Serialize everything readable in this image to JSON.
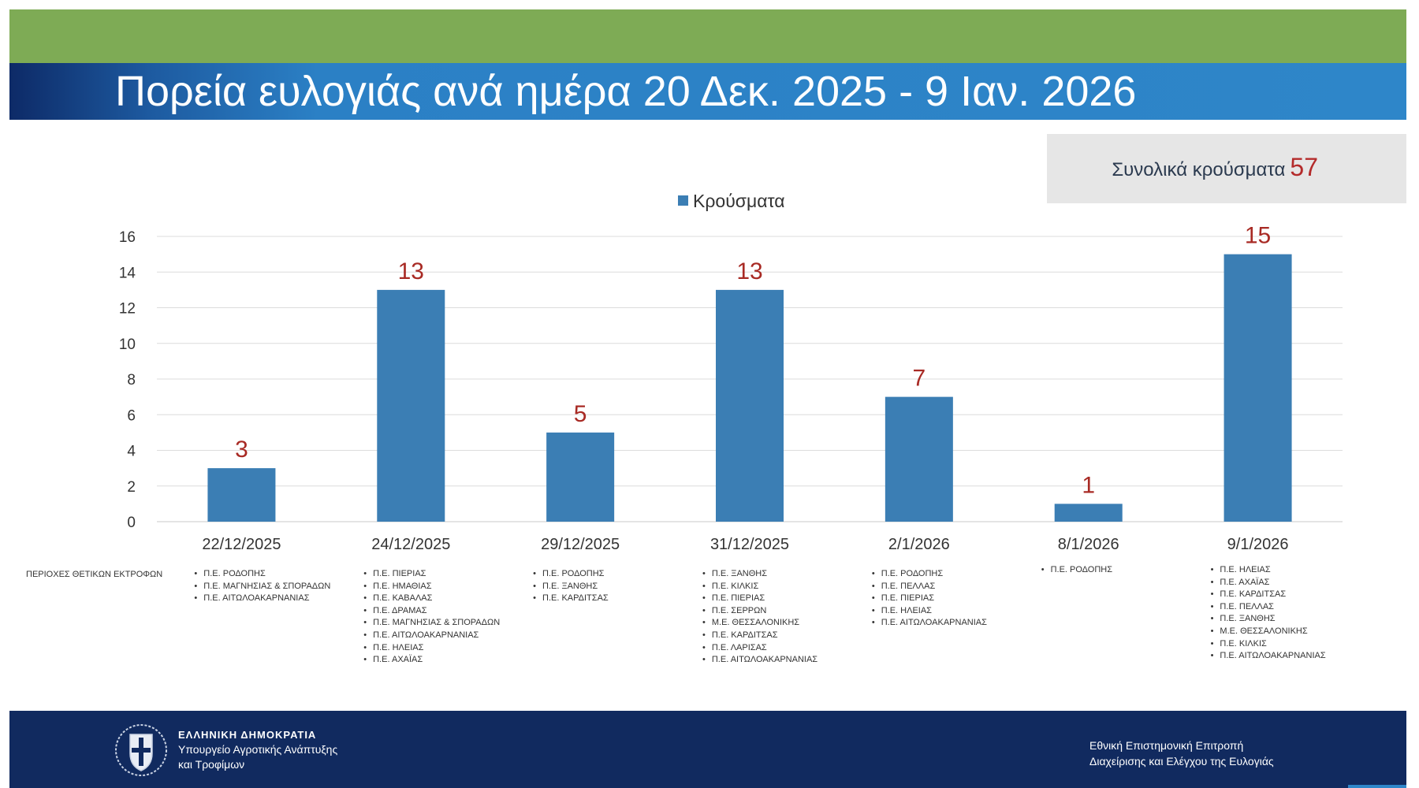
{
  "header": {
    "title": "Πορεία ευλογιάς ανά ημέρα 20 Δεκ. 2025 - 9 Ιαν. 2026"
  },
  "total": {
    "label": "Συνολικά κρούσματα",
    "value": "57"
  },
  "colors": {
    "bar": "#3b7eb4",
    "data_label": "#a82a24",
    "green_band": "#7eab55",
    "title_band": "#2e86c9",
    "footer": "#112a5f"
  },
  "chart_data": {
    "type": "bar",
    "categories": [
      "22/12/2025",
      "24/12/2025",
      "29/12/2025",
      "31/12/2025",
      "2/1/2026",
      "8/1/2026",
      "9/1/2026"
    ],
    "series": [
      {
        "name": "Κρούσματα",
        "values": [
          3,
          13,
          5,
          13,
          7,
          1,
          15
        ]
      }
    ],
    "ylim": [
      0,
      16
    ],
    "yticks": [
      0,
      2,
      4,
      6,
      8,
      10,
      12,
      14,
      16
    ],
    "grid": true,
    "legend_position": "top-center",
    "data_labels": true
  },
  "regions": {
    "caption": "ΠΕΡΙΟΧΕΣ ΘΕΤΙΚΩΝ ΕΚΤΡΟΦΩΝ",
    "lists": [
      [
        "Π.Ε. ΡΟΔΟΠΗΣ",
        "Π.Ε. ΜΑΓΝΗΣΙΑΣ & ΣΠΟΡΑΔΩΝ",
        "Π.Ε. ΑΙΤΩΛΟΑΚΑΡΝΑΝΙΑΣ"
      ],
      [
        "Π.Ε. ΠΙΕΡΙΑΣ",
        "Π.Ε. ΗΜΑΘΙΑΣ",
        "Π.Ε. ΚΑΒΑΛΑΣ",
        "Π.Ε. ΔΡΑΜΑΣ",
        "Π.Ε. ΜΑΓΝΗΣΙΑΣ & ΣΠΟΡΑΔΩΝ",
        "Π.Ε. ΑΙΤΩΛΟΑΚΑΡΝΑΝΙΑΣ",
        "Π.Ε. ΗΛΕΙΑΣ",
        "Π.Ε. ΑΧΑΪΑΣ"
      ],
      [
        "Π.Ε. ΡΟΔΟΠΗΣ",
        "Π.Ε. ΞΑΝΘΗΣ",
        "Π.Ε. ΚΑΡΔΙΤΣΑΣ"
      ],
      [
        "Π.Ε. ΞΑΝΘΗΣ",
        "Π.Ε. ΚΙΛΚΙΣ",
        "Π.Ε. ΠΙΕΡΙΑΣ",
        "Π.Ε. ΣΕΡΡΩΝ",
        "Μ.Ε. ΘΕΣΣΑΛΟΝΙΚΗΣ",
        "Π.Ε. ΚΑΡΔΙΤΣΑΣ",
        "Π.Ε. ΛΑΡΙΣΑΣ",
        "Π.Ε. ΑΙΤΩΛΟΑΚΑΡΝΑΝΙΑΣ"
      ],
      [
        "Π.Ε. ΡΟΔΟΠΗΣ",
        "Π.Ε. ΠΕΛΛΑΣ",
        "Π.Ε. ΠΙΕΡΙΑΣ",
        "Π.Ε. ΗΛΕΙΑΣ",
        "Π.Ε. ΑΙΤΩΛΟΑΚΑΡΝΑΝΙΑΣ"
      ],
      [
        "Π.Ε. ΡΟΔΟΠΗΣ"
      ],
      [
        "Π.Ε. ΗΛΕΙΑΣ",
        "Π.Ε. ΑΧΑΪΑΣ",
        "Π.Ε. ΚΑΡΔΙΤΣΑΣ",
        "Π.Ε. ΠΕΛΛΑΣ",
        "Π.Ε. ΞΑΝΘΗΣ",
        "Μ.Ε. ΘΕΣΣΑΛΟΝΙΚΗΣ",
        "Π.Ε. ΚΙΛΚΙΣ",
        "Π.Ε. ΑΙΤΩΛΟΑΚΑΡΝΑΝΙΑΣ"
      ]
    ]
  },
  "footer": {
    "left_line1": "ΕΛΛΗΝΙΚΗ ΔΗΜΟΚΡΑΤΙΑ",
    "left_line2": "Υπουργείο Αγροτικής Ανάπτυξης",
    "left_line3": "και Τροφίμων",
    "right_line1": "Εθνική Επιστημονική Επιτροπή",
    "right_line2": "Διαχείρισης και Ελέγχου της Ευλογιάς",
    "emblem_icon": "greek-coat-of-arms-icon"
  }
}
